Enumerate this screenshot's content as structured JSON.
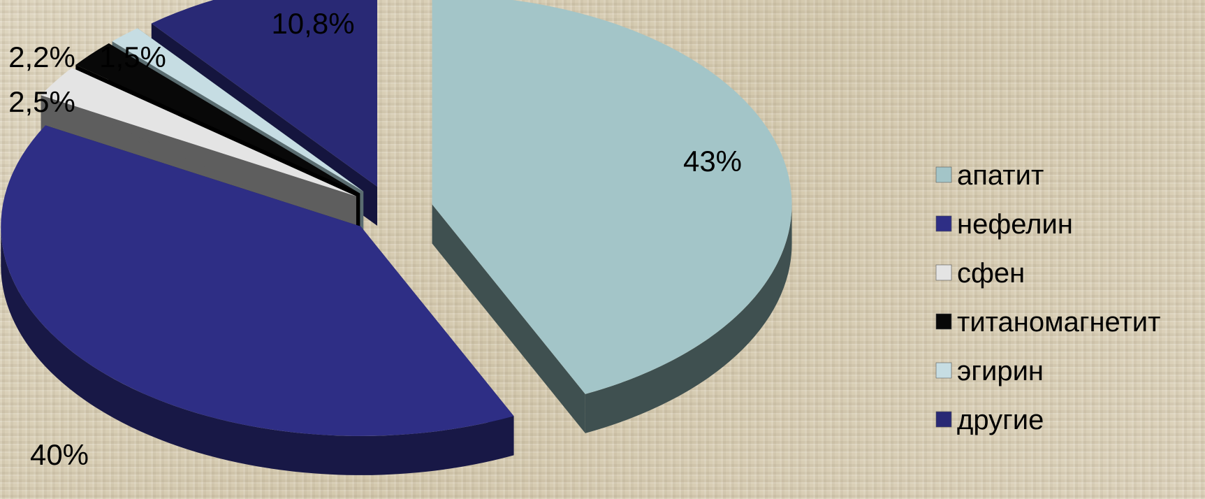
{
  "chart_data": {
    "type": "pie",
    "categories": [
      "апатит",
      "нефелин",
      "сфен",
      "титаномагнетит",
      "эгирин",
      "другие"
    ],
    "values": [
      43,
      40,
      2.5,
      2.2,
      1.5,
      10.8
    ],
    "data_labels": [
      "43%",
      "40%",
      "2,5%",
      "2,2%",
      "1,5%",
      "10,8%"
    ],
    "colors": [
      "#a3c5c8",
      "#2e2e85",
      "#e4e4e4",
      "#080808",
      "#c6dde3",
      "#292975"
    ],
    "side_colors": [
      "#3f5050",
      "#181846",
      "#5e5e5e",
      "#000000",
      "#5a6c70",
      "#15153e"
    ],
    "exploded": true,
    "style": "3d",
    "legend_position": "right",
    "title": ""
  }
}
